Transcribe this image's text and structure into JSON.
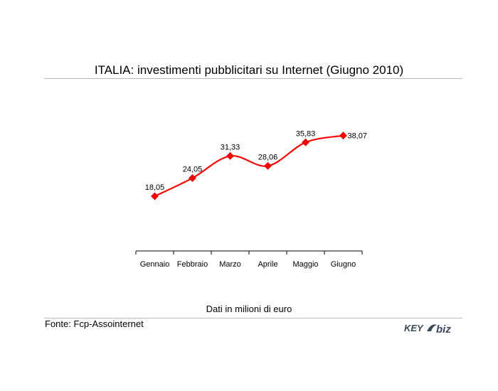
{
  "title": "ITALIA: investimenti pubblicitari su Internet (Giugno 2010)",
  "caption": "Dati in milioni di euro",
  "source": "Fonte: Fcp-Assointernet",
  "logo": {
    "part1": "KEY",
    "part2": "biz",
    "color": "#3a4a5c"
  },
  "chart_data": {
    "type": "line",
    "title": "ITALIA: investimenti pubblicitari su Internet (Giugno 2010)",
    "xlabel": "",
    "ylabel": "",
    "categories": [
      "Gennaio",
      "Febbraio",
      "Marzo",
      "Aprile",
      "Maggio",
      "Giugno"
    ],
    "values": [
      18.05,
      24.05,
      31.33,
      28.06,
      35.83,
      38.07
    ],
    "labels": [
      "18,05",
      "24,05",
      "31,33",
      "28,06",
      "35,83",
      "38,07"
    ],
    "ylim": [
      0,
      57
    ],
    "grid": false,
    "legend": "none",
    "smooth": true,
    "marker": "diamond",
    "color": "#ff0000"
  }
}
